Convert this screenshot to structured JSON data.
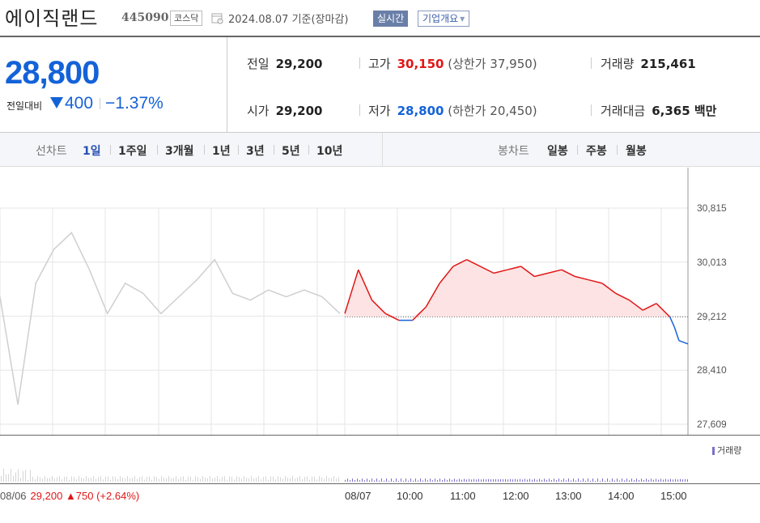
{
  "header": {
    "company_name": "에이직랜드",
    "stock_code": "445090",
    "market": "코스닥",
    "date_text": "2024.08.07 기준(장마감)",
    "realtime_label": "실시간",
    "overview_label": "기업개요"
  },
  "quote": {
    "current_price": "28,800",
    "change_label": "전일대비",
    "change_direction": "down",
    "change_amount": "400",
    "change_pct": "−1.37%",
    "prev_close": {
      "label": "전일",
      "value": "29,200"
    },
    "open": {
      "label": "시가",
      "value": "29,200"
    },
    "high": {
      "label": "고가",
      "value": "30,150",
      "sub": "(상한가 37,950)"
    },
    "low": {
      "label": "저가",
      "value": "28,800",
      "sub": "(하한가 20,450)"
    },
    "volume": {
      "label": "거래량",
      "value": "215,461"
    },
    "trade_amount": {
      "label": "거래대금",
      "value": "6,365 백만"
    }
  },
  "period_bar": {
    "line_chart_label": "선차트",
    "line_periods": [
      "1일",
      "1주일",
      "3개월",
      "1년",
      "3년",
      "5년",
      "10년"
    ],
    "active_period": "1일",
    "candle_chart_label": "봉차트",
    "candle_periods": [
      "일봉",
      "주봉",
      "월봉"
    ]
  },
  "colors": {
    "up": "#e01717",
    "down": "#1462d8",
    "prev_day_line": "#cfcfcf",
    "fill_up": "#fde3e3",
    "volume_bar": "#7a6fcc",
    "accent": "#2750b3"
  },
  "chart_data": {
    "type": "line",
    "y_axis_ticks": [
      "30,815",
      "30,013",
      "29,212",
      "28,410",
      "27,609"
    ],
    "ylim": [
      27609,
      30815
    ],
    "x_axis_labels": [
      "08/07",
      "10:00",
      "11:00",
      "12:00",
      "13:00",
      "14:00",
      "15:00"
    ],
    "prev_day_label": {
      "date": "08/06",
      "close": "29,200",
      "change": "▲750 (+2.64%)"
    },
    "baseline": 29200,
    "volume_label": "거래량",
    "series": [
      {
        "name": "08/06",
        "x": [
          "09:00",
          "09:20",
          "09:40",
          "10:00",
          "10:20",
          "10:40",
          "11:00",
          "11:20",
          "11:40",
          "12:00",
          "12:20",
          "12:40",
          "13:00",
          "13:20",
          "13:40",
          "14:00",
          "14:20",
          "14:40",
          "15:00",
          "15:20"
        ],
        "values": [
          29500,
          27900,
          29700,
          30200,
          30450,
          29900,
          29250,
          29700,
          29550,
          29250,
          29500,
          29750,
          30050,
          29550,
          29450,
          29600,
          29500,
          29600,
          29500,
          29250
        ]
      },
      {
        "name": "08/07",
        "x": [
          "09:00",
          "09:15",
          "09:30",
          "09:45",
          "10:00",
          "10:15",
          "10:30",
          "10:45",
          "11:00",
          "11:15",
          "11:30",
          "11:45",
          "12:00",
          "12:15",
          "12:30",
          "12:45",
          "13:00",
          "13:15",
          "13:30",
          "13:45",
          "14:00",
          "14:15",
          "14:30",
          "14:45",
          "15:00",
          "15:05",
          "15:10",
          "15:20"
        ],
        "values": [
          29250,
          29900,
          29450,
          29250,
          29150,
          29150,
          29350,
          29700,
          29950,
          30050,
          29950,
          29850,
          29900,
          29950,
          29800,
          29850,
          29900,
          29800,
          29750,
          29700,
          29550,
          29450,
          29300,
          29400,
          29200,
          29050,
          28850,
          28800
        ]
      }
    ]
  }
}
